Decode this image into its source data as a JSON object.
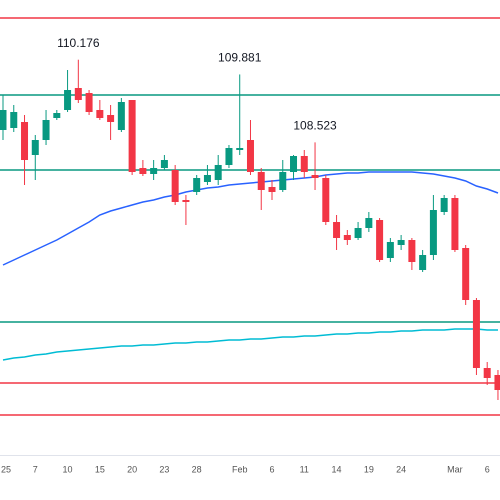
{
  "chart_data": {
    "type": "candlestick",
    "categories": [
      "25",
      null,
      null,
      "7",
      null,
      null,
      "10",
      null,
      null,
      "15",
      null,
      null,
      "20",
      null,
      null,
      "23",
      null,
      null,
      "28",
      null,
      null,
      null,
      "Feb",
      null,
      null,
      "6",
      null,
      null,
      "11",
      null,
      null,
      "14",
      null,
      null,
      "19",
      null,
      null,
      "24",
      null,
      null,
      null,
      null,
      "Mar",
      null,
      null,
      "6",
      null
    ],
    "open": [
      108.77,
      108.81,
      108.93,
      108.27,
      108.57,
      109.01,
      109.17,
      109.61,
      109.51,
      109.17,
      109.07,
      108.77,
      109.37,
      108.01,
      107.89,
      108.01,
      107.97,
      107.37,
      107.53,
      107.73,
      107.77,
      108.07,
      108.37,
      108.57,
      107.93,
      107.63,
      107.57,
      107.93,
      108.25,
      107.87,
      107.81,
      106.93,
      106.67,
      106.61,
      106.81,
      106.97,
      106.21,
      106.47,
      106.57,
      105.97,
      106.27,
      107.13,
      107.41,
      106.41,
      105.37,
      104.01,
      103.87
    ],
    "high": [
      109.47,
      109.27,
      109.07,
      108.67,
      109.17,
      109.17,
      109.97,
      110.176,
      109.57,
      109.37,
      109.27,
      109.41,
      109.37,
      108.17,
      108.17,
      108.27,
      108.07,
      107.47,
      107.87,
      108.07,
      108.27,
      108.47,
      109.881,
      108.97,
      108.01,
      107.77,
      108.17,
      108.27,
      108.37,
      108.523,
      107.87,
      107.07,
      106.77,
      106.93,
      107.13,
      107.01,
      106.61,
      106.67,
      106.61,
      106.37,
      107.47,
      107.47,
      107.47,
      106.47,
      105.41,
      104.13,
      103.97
    ],
    "low": [
      108.57,
      108.73,
      107.67,
      107.77,
      108.47,
      108.97,
      109.13,
      109.31,
      109.07,
      108.97,
      108.57,
      108.73,
      107.87,
      107.85,
      107.77,
      107.97,
      107.27,
      106.87,
      107.47,
      107.67,
      107.67,
      108.01,
      108.27,
      107.87,
      107.17,
      107.37,
      107.53,
      107.77,
      107.81,
      107.57,
      106.87,
      106.37,
      106.47,
      106.57,
      106.73,
      106.13,
      106.13,
      106.37,
      105.97,
      105.93,
      106.17,
      107.07,
      106.33,
      105.27,
      103.87,
      103.67,
      103.37
    ],
    "close": [
      109.17,
      109.13,
      108.17,
      108.57,
      108.97,
      109.11,
      109.57,
      109.37,
      109.13,
      109.01,
      108.93,
      109.33,
      107.93,
      107.89,
      108.01,
      108.17,
      107.33,
      107.33,
      107.81,
      107.87,
      108.07,
      108.41,
      108.41,
      107.93,
      107.57,
      107.53,
      107.93,
      108.25,
      107.93,
      107.81,
      106.93,
      106.61,
      106.57,
      106.81,
      107.01,
      106.17,
      106.53,
      106.57,
      106.13,
      106.27,
      107.17,
      107.41,
      106.37,
      105.37,
      104.01,
      103.81,
      103.57
    ],
    "up_color": "#089981",
    "down_color": "#f23645",
    "moving_averages": [
      {
        "color": "#2962ff",
        "values": [
          106.07,
          106.17,
          106.27,
          106.37,
          106.47,
          106.57,
          106.69,
          106.81,
          106.93,
          107.07,
          107.15,
          107.21,
          107.27,
          107.33,
          107.37,
          107.43,
          107.47,
          107.53,
          107.57,
          107.61,
          107.63,
          107.67,
          107.69,
          107.71,
          107.73,
          107.75,
          107.77,
          107.79,
          107.81,
          107.83,
          107.87,
          107.89,
          107.91,
          107.91,
          107.93,
          107.93,
          107.93,
          107.93,
          107.93,
          107.91,
          107.89,
          107.85,
          107.81,
          107.75,
          107.65,
          107.59,
          107.51
        ]
      },
      {
        "color": "#00bcd4",
        "values": [
          104.17,
          104.21,
          104.23,
          104.27,
          104.29,
          104.33,
          104.35,
          104.37,
          104.39,
          104.41,
          104.43,
          104.45,
          104.45,
          104.47,
          104.47,
          104.49,
          104.51,
          104.51,
          104.53,
          104.53,
          104.55,
          104.57,
          104.57,
          104.59,
          104.59,
          104.61,
          104.63,
          104.63,
          104.65,
          104.65,
          104.67,
          104.69,
          104.69,
          104.71,
          104.71,
          104.73,
          104.73,
          104.75,
          104.75,
          104.77,
          104.77,
          104.77,
          104.79,
          104.79,
          104.79,
          104.77,
          104.77
        ]
      }
    ],
    "horizontal_lines": [
      {
        "value": 111.01,
        "color": "#f23645"
      },
      {
        "value": 109.47,
        "color": "#089981"
      },
      {
        "value": 107.97,
        "color": "#089981"
      },
      {
        "value": 104.93,
        "color": "#089981"
      },
      {
        "value": 103.71,
        "color": "#f23645"
      },
      {
        "value": 103.07,
        "color": "#f23645"
      }
    ],
    "annotations": [
      110.176,
      109.881,
      108.523
    ],
    "ylim": [
      102.27,
      111.37
    ]
  }
}
